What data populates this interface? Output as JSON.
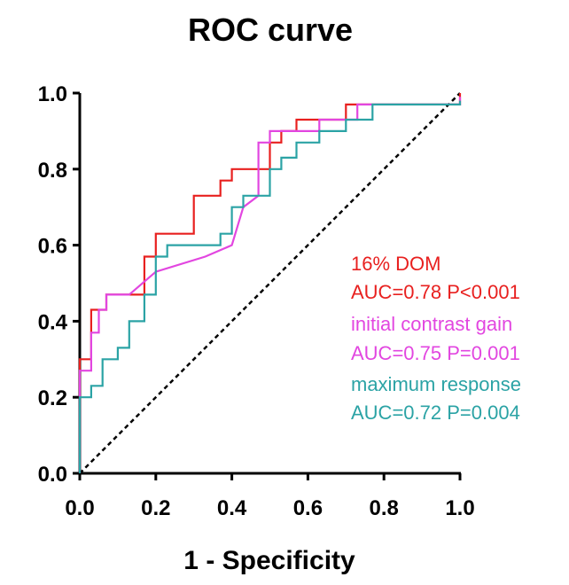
{
  "chart_data": {
    "type": "line",
    "title": "ROC curve",
    "xlabel": "1 - Specificity",
    "ylabel": "",
    "xlim": [
      0,
      1
    ],
    "ylim": [
      0,
      1
    ],
    "xticks": [
      0.0,
      0.2,
      0.4,
      0.6,
      0.8,
      1.0
    ],
    "yticks": [
      0.0,
      0.2,
      0.4,
      0.6,
      0.8,
      1.0
    ],
    "xtick_labels": [
      "0.0",
      "0.2",
      "0.4",
      "0.6",
      "0.8",
      "1.0"
    ],
    "ytick_labels": [
      "0.0",
      "0.2",
      "0.4",
      "0.6",
      "0.8",
      "1.0"
    ],
    "grid": false,
    "reference_line": {
      "name": "chance",
      "style": "dashed",
      "color": "#000000",
      "points": [
        [
          0,
          0
        ],
        [
          1,
          1
        ]
      ]
    },
    "series": [
      {
        "name": "16% DOM",
        "auc_label": "AUC=0.78 P<0.001",
        "color": "#e8201f",
        "points": [
          [
            0,
            0
          ],
          [
            0,
            0.3
          ],
          [
            0.03,
            0.3
          ],
          [
            0.03,
            0.43
          ],
          [
            0.07,
            0.43
          ],
          [
            0.07,
            0.47
          ],
          [
            0.17,
            0.47
          ],
          [
            0.17,
            0.57
          ],
          [
            0.2,
            0.57
          ],
          [
            0.2,
            0.63
          ],
          [
            0.3,
            0.63
          ],
          [
            0.3,
            0.73
          ],
          [
            0.37,
            0.73
          ],
          [
            0.37,
            0.77
          ],
          [
            0.4,
            0.77
          ],
          [
            0.4,
            0.8
          ],
          [
            0.5,
            0.8
          ],
          [
            0.5,
            0.87
          ],
          [
            0.53,
            0.87
          ],
          [
            0.53,
            0.9
          ],
          [
            0.57,
            0.9
          ],
          [
            0.57,
            0.93
          ],
          [
            0.7,
            0.93
          ],
          [
            0.7,
            0.97
          ],
          [
            1.0,
            0.97
          ],
          [
            1.0,
            1.0
          ]
        ]
      },
      {
        "name": "initial contrast gain",
        "auc_label": "AUC=0.75 P=0.001",
        "color": "#e246e0",
        "points": [
          [
            0,
            0
          ],
          [
            0,
            0.27
          ],
          [
            0.03,
            0.27
          ],
          [
            0.03,
            0.37
          ],
          [
            0.05,
            0.37
          ],
          [
            0.05,
            0.43
          ],
          [
            0.07,
            0.43
          ],
          [
            0.07,
            0.47
          ],
          [
            0.13,
            0.47
          ],
          [
            0.2,
            0.53
          ],
          [
            0.33,
            0.57
          ],
          [
            0.4,
            0.6
          ],
          [
            0.43,
            0.7
          ],
          [
            0.47,
            0.73
          ],
          [
            0.47,
            0.87
          ],
          [
            0.5,
            0.87
          ],
          [
            0.5,
            0.9
          ],
          [
            0.63,
            0.9
          ],
          [
            0.63,
            0.93
          ],
          [
            0.73,
            0.93
          ],
          [
            0.73,
            0.97
          ],
          [
            1.0,
            0.97
          ],
          [
            1.0,
            0.99
          ]
        ]
      },
      {
        "name": "maximum response",
        "auc_label": "AUC=0.72 P=0.004",
        "color": "#2ba3a5",
        "points": [
          [
            0,
            0
          ],
          [
            0,
            0.2
          ],
          [
            0.03,
            0.2
          ],
          [
            0.03,
            0.23
          ],
          [
            0.06,
            0.23
          ],
          [
            0.06,
            0.3
          ],
          [
            0.1,
            0.3
          ],
          [
            0.1,
            0.33
          ],
          [
            0.13,
            0.33
          ],
          [
            0.13,
            0.4
          ],
          [
            0.17,
            0.4
          ],
          [
            0.17,
            0.47
          ],
          [
            0.2,
            0.47
          ],
          [
            0.2,
            0.57
          ],
          [
            0.23,
            0.57
          ],
          [
            0.23,
            0.6
          ],
          [
            0.37,
            0.6
          ],
          [
            0.37,
            0.63
          ],
          [
            0.4,
            0.63
          ],
          [
            0.4,
            0.7
          ],
          [
            0.43,
            0.7
          ],
          [
            0.43,
            0.73
          ],
          [
            0.5,
            0.73
          ],
          [
            0.5,
            0.8
          ],
          [
            0.53,
            0.8
          ],
          [
            0.53,
            0.83
          ],
          [
            0.57,
            0.83
          ],
          [
            0.57,
            0.87
          ],
          [
            0.63,
            0.87
          ],
          [
            0.63,
            0.9
          ],
          [
            0.7,
            0.9
          ],
          [
            0.7,
            0.93
          ],
          [
            0.77,
            0.93
          ],
          [
            0.77,
            0.97
          ],
          [
            1.0,
            0.97
          ],
          [
            1.0,
            0.98
          ]
        ]
      }
    ]
  }
}
